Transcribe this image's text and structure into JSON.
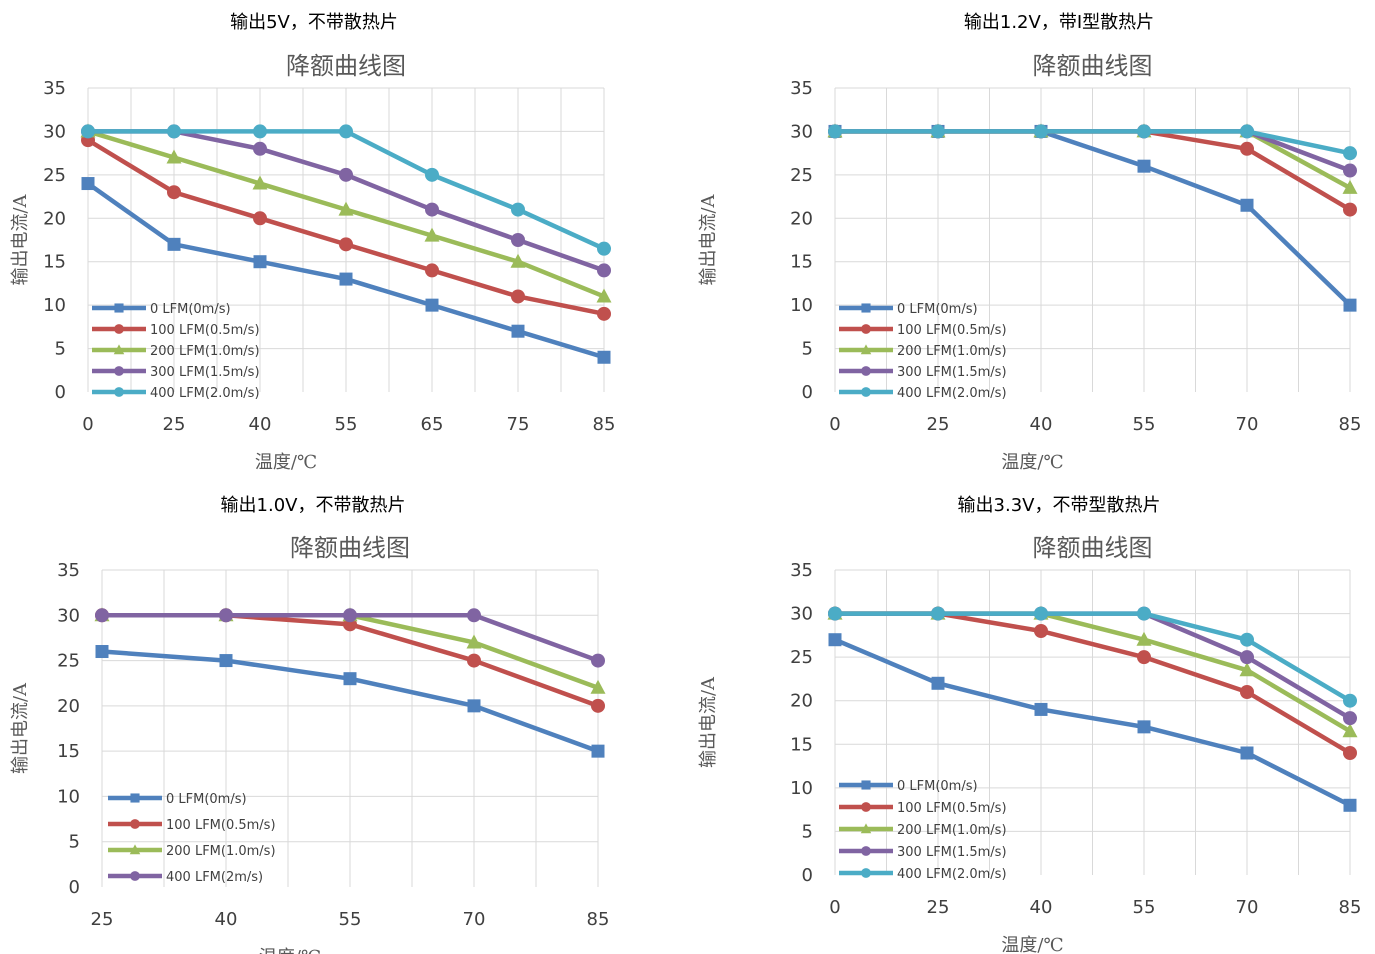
{
  "chart_data": [
    {
      "type": "line",
      "heading": "输出5V，不带散热片",
      "title": "降额曲线图",
      "xlabel": "温度/℃",
      "ylabel": "输出电流/A",
      "categories": [
        "0",
        "25",
        "40",
        "55",
        "65",
        "75",
        "85"
      ],
      "ylim": [
        0,
        35
      ],
      "yticks": [
        0,
        5,
        10,
        15,
        20,
        25,
        30,
        35
      ],
      "grid": true,
      "legend_position": "bottom-left",
      "series": [
        {
          "name": "0 LFM(0m/s)",
          "color": "#4f81bd",
          "marker": "square",
          "values": [
            24,
            17,
            15,
            13,
            10,
            7,
            4
          ]
        },
        {
          "name": "100 LFM(0.5m/s)",
          "color": "#c0504d",
          "marker": "circle",
          "values": [
            29,
            23,
            20,
            17,
            14,
            11,
            9
          ]
        },
        {
          "name": "200 LFM(1.0m/s)",
          "color": "#9bbb59",
          "marker": "triangle",
          "values": [
            30,
            27,
            24,
            21,
            18,
            15,
            11
          ]
        },
        {
          "name": "300 LFM(1.5m/s)",
          "color": "#8064a2",
          "marker": "circle",
          "values": [
            30,
            30,
            28,
            25,
            21,
            17.5,
            14
          ]
        },
        {
          "name": "400 LFM(2.0m/s)",
          "color": "#4bacc6",
          "marker": "circle",
          "values": [
            30,
            30,
            30,
            30,
            25,
            21,
            16.5
          ]
        }
      ]
    },
    {
      "type": "line",
      "heading": "输出1.2V，带I型散热片",
      "title": "降额曲线图",
      "xlabel": "温度/℃",
      "ylabel": "输出电流/A",
      "categories": [
        "0",
        "25",
        "40",
        "55",
        "70",
        "85"
      ],
      "ylim": [
        0,
        35
      ],
      "yticks": [
        0,
        5,
        10,
        15,
        20,
        25,
        30,
        35
      ],
      "grid": true,
      "legend_position": "bottom-left",
      "series": [
        {
          "name": "0 LFM(0m/s)",
          "color": "#4f81bd",
          "marker": "square",
          "values": [
            30,
            30,
            30,
            26,
            21.5,
            10
          ]
        },
        {
          "name": "100 LFM(0.5m/s)",
          "color": "#c0504d",
          "marker": "circle",
          "values": [
            30,
            30,
            30,
            30,
            28,
            21
          ]
        },
        {
          "name": "200 LFM(1.0m/s)",
          "color": "#9bbb59",
          "marker": "triangle",
          "values": [
            30,
            30,
            30,
            30,
            30,
            23.5
          ]
        },
        {
          "name": "300 LFM(1.5m/s)",
          "color": "#8064a2",
          "marker": "circle",
          "values": [
            30,
            30,
            30,
            30,
            30,
            25.5
          ]
        },
        {
          "name": "400 LFM(2.0m/s)",
          "color": "#4bacc6",
          "marker": "circle",
          "values": [
            30,
            30,
            30,
            30,
            30,
            27.5
          ]
        }
      ]
    },
    {
      "type": "line",
      "heading": "输出1.0V，不带散热片",
      "title": "降额曲线图",
      "xlabel": "温度/℃",
      "ylabel": "输出电流/A",
      "categories": [
        "25",
        "40",
        "55",
        "70",
        "85"
      ],
      "ylim": [
        0,
        35
      ],
      "yticks": [
        0,
        5,
        10,
        15,
        20,
        25,
        30,
        35
      ],
      "grid": true,
      "legend_position": "bottom-left",
      "series": [
        {
          "name": "0 LFM(0m/s)",
          "color": "#4f81bd",
          "marker": "square",
          "values": [
            26,
            25,
            23,
            20,
            15
          ]
        },
        {
          "name": "100 LFM(0.5m/s)",
          "color": "#c0504d",
          "marker": "circle",
          "values": [
            30,
            30,
            29,
            25,
            20
          ]
        },
        {
          "name": "200 LFM(1.0m/s)",
          "color": "#9bbb59",
          "marker": "triangle",
          "values": [
            30,
            30,
            30,
            27,
            22
          ]
        },
        {
          "name": "400 LFM(2m/s)",
          "color": "#8064a2",
          "marker": "circle",
          "values": [
            30,
            30,
            30,
            30,
            25
          ]
        }
      ]
    },
    {
      "type": "line",
      "heading": "输出3.3V，不带型散热片",
      "title": "降额曲线图",
      "xlabel": "温度/℃",
      "ylabel": "输出电流/A",
      "categories": [
        "0",
        "25",
        "40",
        "55",
        "70",
        "85"
      ],
      "ylim": [
        0,
        35
      ],
      "yticks": [
        0,
        5,
        10,
        15,
        20,
        25,
        30,
        35
      ],
      "grid": true,
      "legend_position": "bottom-left",
      "series": [
        {
          "name": "0 LFM(0m/s)",
          "color": "#4f81bd",
          "marker": "square",
          "values": [
            27,
            22,
            19,
            17,
            14,
            8
          ]
        },
        {
          "name": "100 LFM(0.5m/s)",
          "color": "#c0504d",
          "marker": "circle",
          "values": [
            30,
            30,
            28,
            25,
            21,
            14
          ]
        },
        {
          "name": "200 LFM(1.0m/s)",
          "color": "#9bbb59",
          "marker": "triangle",
          "values": [
            30,
            30,
            30,
            27,
            23.5,
            16.5
          ]
        },
        {
          "name": "300 LFM(1.5m/s)",
          "color": "#8064a2",
          "marker": "circle",
          "values": [
            30,
            30,
            30,
            30,
            25,
            18
          ]
        },
        {
          "name": "400 LFM(2.0m/s)",
          "color": "#4bacc6",
          "marker": "circle",
          "values": [
            30,
            30,
            30,
            30,
            27,
            20
          ]
        }
      ]
    }
  ]
}
